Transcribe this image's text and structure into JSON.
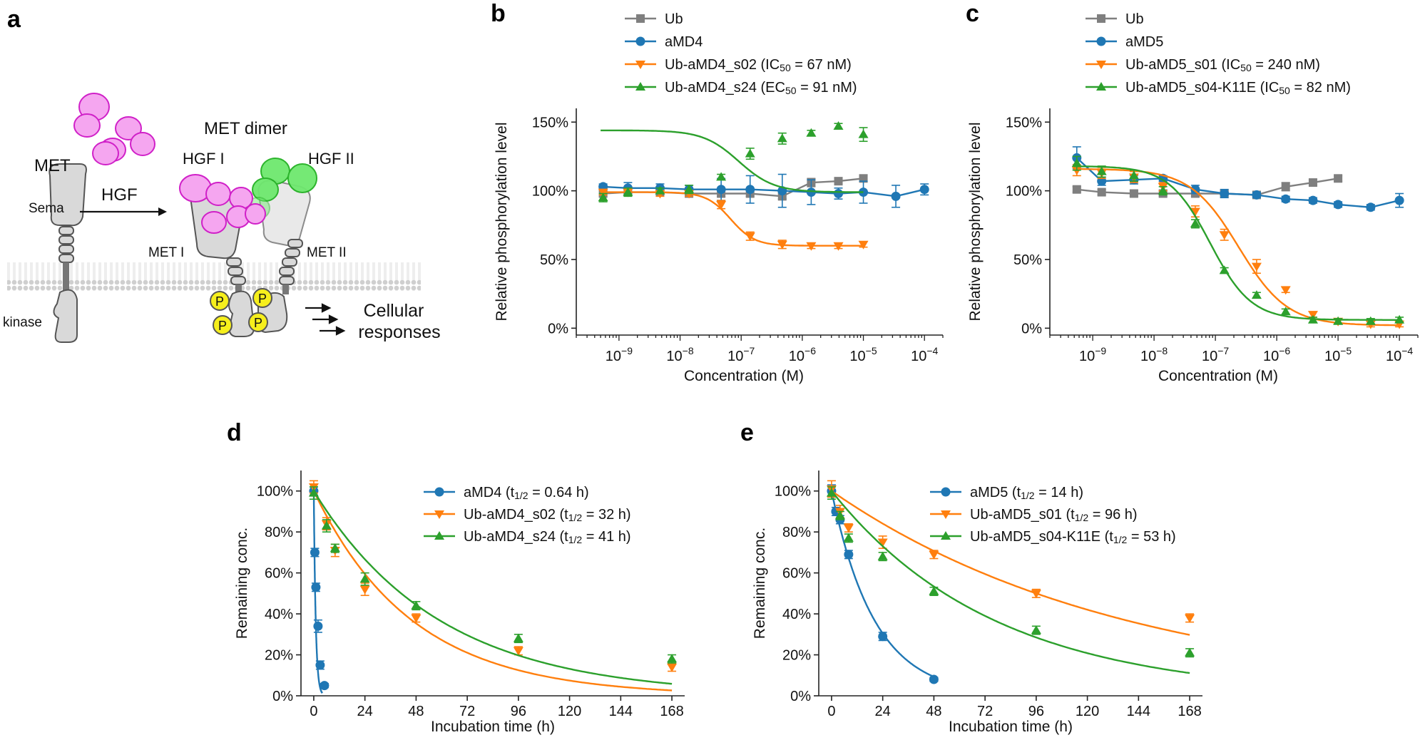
{
  "panels": {
    "a": "a",
    "b": "b",
    "c": "c",
    "d": "d",
    "e": "e"
  },
  "schematic": {
    "met_label": "MET",
    "sema_label": "Sema",
    "hgf_arrow_label": "HGF",
    "met_dimer_label": "MET dimer",
    "hgf1_label": "HGF I",
    "hgf2_label": "HGF II",
    "met1_label": "MET I",
    "met2_label": "MET II",
    "kinase_label": "kinase",
    "phospho_label": "P",
    "cellular_line1": "Cellular",
    "cellular_line2": "responses",
    "colors": {
      "hgf1": "#f5a6f0",
      "hgf1_edge": "#d020c8",
      "hgf2": "#6ee86e",
      "hgf2_edge": "#22b022",
      "phospho": "#f6ef1c",
      "receptor": "#d9d9d9"
    }
  },
  "colors": {
    "gray": "#7f7f7f",
    "blue": "#1f77b4",
    "orange": "#ff7f0e",
    "green": "#2ca02c"
  },
  "chart_data": [
    {
      "id": "b",
      "type": "line",
      "xscale": "log",
      "xlabel": "Concentration (M)",
      "ylabel": "Relative phosphorylation level",
      "xlim": [
        2e-10,
        0.0002
      ],
      "ylim": [
        -5,
        160
      ],
      "xticks": [
        "10^-9",
        "10^-8",
        "10^-7",
        "10^-6",
        "10^-5",
        "10^-4"
      ],
      "yticks": [
        "0%",
        "50%",
        "100%",
        "150%"
      ],
      "legend_position": "top",
      "series": [
        {
          "name": "Ub",
          "color": "gray",
          "marker": "square",
          "x": [
            5.5e-10,
            1.4e-09,
            4.7e-09,
            1.4e-08,
            4.7e-08,
            1.4e-07,
            4.7e-07,
            1.4e-06,
            3.9e-06,
            1e-05
          ],
          "y": [
            98,
            99,
            99,
            98,
            98,
            98,
            96,
            106,
            107,
            109
          ],
          "err": [
            2,
            2,
            2,
            2,
            2,
            2,
            2,
            3,
            2,
            2
          ]
        },
        {
          "name": "aMD4",
          "color": "blue",
          "marker": "circle",
          "x": [
            5.5e-10,
            1.4e-09,
            4.7e-09,
            1.4e-08,
            4.7e-08,
            1.4e-07,
            4.7e-07,
            1.4e-06,
            3.9e-06,
            1e-05,
            3.4e-05,
            0.0001
          ],
          "y": [
            103,
            102,
            102,
            101,
            101,
            101,
            100,
            99,
            98,
            99,
            96,
            101
          ],
          "err": [
            2,
            4,
            3,
            3,
            8,
            10,
            12,
            9,
            4,
            8,
            8,
            4
          ]
        },
        {
          "name": "Ub-aMD4_s02 (IC50 = 67 nM)",
          "color": "orange",
          "marker": "triangle-down",
          "x": [
            5.5e-10,
            1.4e-09,
            4.7e-09,
            1.4e-08,
            4.7e-08,
            1.4e-07,
            4.7e-07,
            1.4e-06,
            3.9e-06,
            1e-05
          ],
          "y": [
            99,
            99,
            98,
            98,
            90,
            67,
            61,
            60,
            60,
            61
          ],
          "err": [
            2,
            2,
            2,
            2,
            3,
            3,
            3,
            2,
            2,
            2
          ],
          "fit": {
            "top": 99,
            "bottom": 60,
            "x50": 6.7e-08,
            "hill": 2.2,
            "from": 5e-10,
            "to": 1e-05
          }
        },
        {
          "name": "Ub-aMD4_s24 (EC50 = 91 nM)",
          "color": "green",
          "marker": "triangle-up",
          "x": [
            5.5e-10,
            1.4e-09,
            4.7e-09,
            1.4e-08,
            4.7e-08,
            1.4e-07,
            4.7e-07,
            1.4e-06,
            3.9e-06,
            1e-05
          ],
          "y": [
            95,
            99,
            100,
            101,
            110,
            127,
            138,
            142,
            147,
            141
          ],
          "err": [
            3,
            3,
            2,
            3,
            2,
            4,
            4,
            2,
            2,
            5
          ],
          "fit": {
            "top": 144,
            "bottom": 99,
            "x50": 9.1e-08,
            "hill": 1.5,
            "from": 5e-10,
            "to": 1e-05
          }
        }
      ]
    },
    {
      "id": "c",
      "type": "line",
      "xscale": "log",
      "xlabel": "Concentration (M)",
      "ylabel": "Relative phosphorylation level",
      "xlim": [
        2e-10,
        0.0002
      ],
      "ylim": [
        -5,
        160
      ],
      "xticks": [
        "10^-9",
        "10^-8",
        "10^-7",
        "10^-6",
        "10^-5",
        "10^-4"
      ],
      "yticks": [
        "0%",
        "50%",
        "100%",
        "150%"
      ],
      "legend_position": "top",
      "series": [
        {
          "name": "Ub",
          "color": "gray",
          "marker": "square",
          "x": [
            5.5e-10,
            1.4e-09,
            4.7e-09,
            1.4e-08,
            4.7e-08,
            1.4e-07,
            4.7e-07,
            1.4e-06,
            3.9e-06,
            1e-05
          ],
          "y": [
            101,
            99,
            98,
            98,
            98,
            98,
            97,
            103,
            106,
            109
          ],
          "err": [
            2,
            2,
            2,
            2,
            2,
            2,
            2,
            3,
            2,
            2
          ]
        },
        {
          "name": "aMD5",
          "color": "blue",
          "marker": "circle",
          "x": [
            5.5e-10,
            1.4e-09,
            4.7e-09,
            1.4e-08,
            4.7e-08,
            1.4e-07,
            4.7e-07,
            1.4e-06,
            3.9e-06,
            1e-05,
            3.4e-05,
            0.0001
          ],
          "y": [
            124,
            107,
            108,
            109,
            101,
            98,
            97,
            94,
            93,
            90,
            88,
            93
          ],
          "err": [
            8,
            3,
            3,
            2,
            3,
            3,
            2,
            2,
            2,
            2,
            2,
            5
          ]
        },
        {
          "name": "Ub-aMD5_s01 (IC50 = 240 nM)",
          "color": "orange",
          "marker": "triangle-down",
          "x": [
            5.5e-10,
            1.4e-09,
            4.7e-09,
            1.4e-08,
            4.7e-08,
            1.4e-07,
            4.7e-07,
            1.4e-06,
            3.9e-06,
            1e-05,
            3.4e-05,
            0.0001
          ],
          "y": [
            115,
            113,
            110,
            103,
            85,
            68,
            45,
            28,
            10,
            5,
            3,
            3
          ],
          "err": [
            4,
            4,
            4,
            3,
            4,
            4,
            5,
            2,
            2,
            2,
            2,
            2
          ],
          "fit": {
            "top": 116,
            "bottom": 2,
            "x50": 2.4e-07,
            "hill": 1.1,
            "from": 5e-10,
            "to": 0.0001
          }
        },
        {
          "name": "Ub-aMD5_s04-K11E (IC50 = 82 nM)",
          "color": "green",
          "marker": "triangle-up",
          "x": [
            5.5e-10,
            1.4e-09,
            4.7e-09,
            1.4e-08,
            4.7e-08,
            1.4e-07,
            4.7e-07,
            1.4e-06,
            3.9e-06,
            1e-05,
            3.4e-05,
            0.0001
          ],
          "y": [
            120,
            114,
            111,
            100,
            76,
            42,
            24,
            12,
            6,
            5,
            5,
            6
          ],
          "err": [
            5,
            4,
            4,
            3,
            3,
            2,
            2,
            2,
            2,
            2,
            2,
            2
          ],
          "fit": {
            "top": 118,
            "bottom": 6,
            "x50": 8.2e-08,
            "hill": 1.3,
            "from": 5e-10,
            "to": 0.0001
          }
        }
      ]
    },
    {
      "id": "d",
      "type": "scatter",
      "xlabel": "Incubation time (h)",
      "ylabel": "Remaining conc.",
      "xlim": [
        -6,
        174
      ],
      "ylim": [
        0,
        110
      ],
      "xticks": [
        0,
        24,
        48,
        72,
        96,
        120,
        144,
        168
      ],
      "yticks": [
        "0%",
        "20%",
        "40%",
        "60%",
        "80%",
        "100%"
      ],
      "legend_position": "top-right",
      "series": [
        {
          "name": "aMD4",
          "t_half": "0.64 h",
          "color": "blue",
          "marker": "circle",
          "x": [
            0,
            0.5,
            1,
            2,
            3,
            5
          ],
          "y": [
            100,
            70,
            53,
            34,
            15,
            5
          ],
          "err": [
            2,
            2,
            2,
            3,
            2,
            1
          ],
          "fit": {
            "t_half": 0.64,
            "from": 0,
            "to": 4
          }
        },
        {
          "name": "Ub-aMD4_s02",
          "t_half": "32 h",
          "color": "orange",
          "marker": "triangle-down",
          "x": [
            0,
            6,
            10,
            24,
            48,
            96,
            168
          ],
          "y": [
            102,
            84,
            71,
            52,
            38,
            22,
            14
          ],
          "err": [
            3,
            3,
            3,
            3,
            2,
            2,
            2
          ],
          "fit": {
            "t_half": 32,
            "from": 0,
            "to": 168
          }
        },
        {
          "name": "Ub-aMD4_s24",
          "t_half": "41 h",
          "color": "green",
          "marker": "triangle-up",
          "x": [
            0,
            6,
            10,
            24,
            48,
            96,
            168
          ],
          "y": [
            99,
            83,
            72,
            57,
            44,
            28,
            18
          ],
          "err": [
            3,
            3,
            2,
            3,
            2,
            2,
            2
          ],
          "fit": {
            "t_half": 41,
            "from": 0,
            "to": 168
          }
        }
      ]
    },
    {
      "id": "e",
      "type": "scatter",
      "xlabel": "Incubation time (h)",
      "ylabel": "Remaining conc.",
      "xlim": [
        -6,
        174
      ],
      "ylim": [
        0,
        110
      ],
      "xticks": [
        0,
        24,
        48,
        72,
        96,
        120,
        144,
        168
      ],
      "yticks": [
        "0%",
        "20%",
        "40%",
        "60%",
        "80%",
        "100%"
      ],
      "legend_position": "top-right",
      "series": [
        {
          "name": "aMD5",
          "t_half": "14 h",
          "color": "blue",
          "marker": "circle",
          "x": [
            0,
            2,
            4,
            8,
            24,
            48
          ],
          "y": [
            100,
            90,
            86,
            69,
            29,
            8
          ],
          "err": [
            3,
            2,
            2,
            2,
            2,
            1
          ],
          "fit": {
            "t_half": 14,
            "from": 0,
            "to": 48
          }
        },
        {
          "name": "Ub-aMD5_s01",
          "t_half": "96 h",
          "color": "orange",
          "marker": "triangle-down",
          "x": [
            0,
            4,
            8,
            24,
            48,
            96,
            168
          ],
          "y": [
            101,
            90,
            82,
            75,
            69,
            50,
            38
          ],
          "err": [
            4,
            3,
            2,
            3,
            2,
            2,
            2
          ],
          "fit": {
            "t_half": 96,
            "from": 0,
            "to": 168
          }
        },
        {
          "name": "Ub-aMD5_s04-K11E",
          "t_half": "53 h",
          "color": "green",
          "marker": "triangle-up",
          "x": [
            0,
            4,
            8,
            24,
            48,
            96,
            168
          ],
          "y": [
            99,
            88,
            77,
            68,
            51,
            32,
            21
          ],
          "err": [
            3,
            2,
            2,
            2,
            2,
            2,
            2
          ],
          "fit": {
            "t_half": 53,
            "from": 0,
            "to": 168
          }
        }
      ]
    }
  ]
}
